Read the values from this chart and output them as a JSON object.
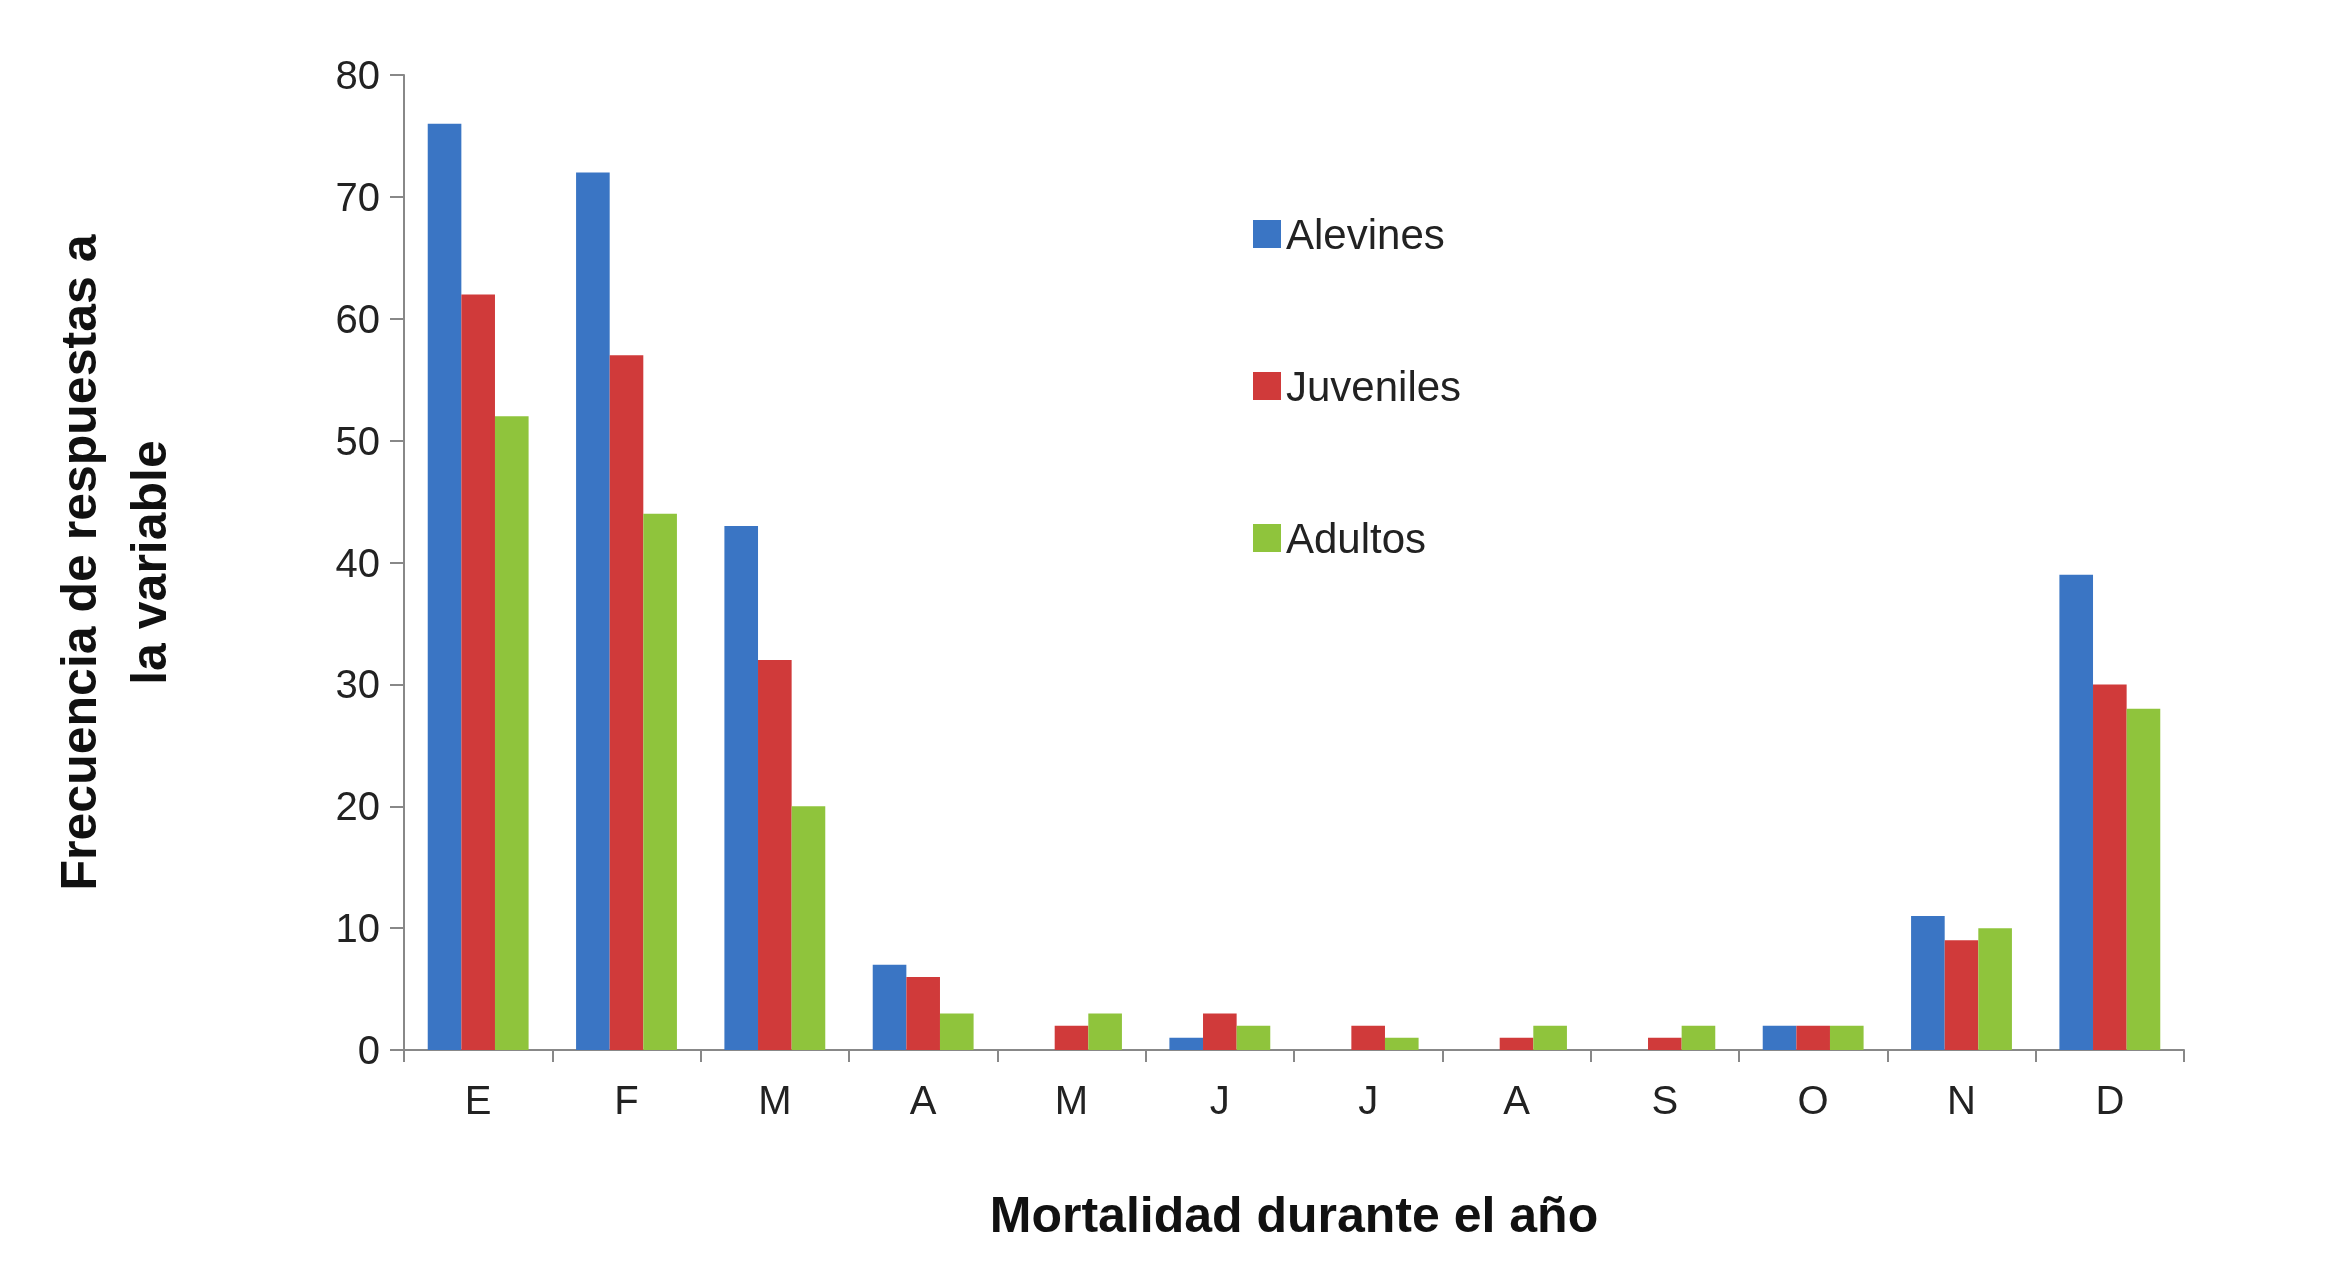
{
  "chart_data": {
    "type": "bar",
    "xlabel": "Mortalidad durante el año",
    "ylabel": "Frecuencia de respuestas a\nla variable",
    "categories": [
      "E",
      "F",
      "M",
      "A",
      "M",
      "J",
      "J",
      "A",
      "S",
      "O",
      "N",
      "D"
    ],
    "series": [
      {
        "name": "Alevines",
        "color": "#3a75c4",
        "values": [
          76,
          72,
          43,
          7,
          0,
          1,
          0,
          0,
          0,
          2,
          11,
          39
        ]
      },
      {
        "name": "Juveniles",
        "color": "#d03a3a",
        "values": [
          62,
          57,
          32,
          6,
          2,
          3,
          2,
          1,
          1,
          2,
          9,
          30
        ]
      },
      {
        "name": "Adultos",
        "color": "#8fc43c",
        "values": [
          52,
          44,
          20,
          3,
          3,
          2,
          1,
          2,
          2,
          2,
          10,
          28
        ]
      }
    ],
    "ylim": [
      0,
      80
    ],
    "yticks": [
      0,
      10,
      20,
      30,
      40,
      50,
      60,
      70,
      80
    ],
    "grid": false,
    "legend": "top"
  }
}
